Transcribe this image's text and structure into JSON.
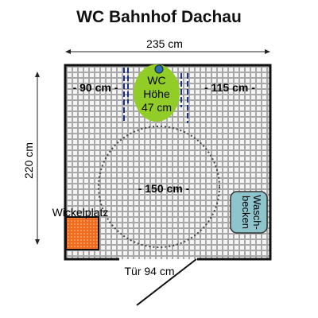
{
  "title": "WC Bahnhof Dachau",
  "width_label": "235 cm",
  "height_label": "220 cm",
  "left_gap_label": "- 90 cm -",
  "right_gap_label": "- 115 cm -",
  "wc": {
    "line1": "WC",
    "line2": "Höhe",
    "line3": "47 cm"
  },
  "circle_label": "- 150 cm -",
  "changing_table_label": "Wickelplatz",
  "sink": {
    "line1": "Wasch-",
    "line2": "becken"
  },
  "door_label": "Tür 94 cm",
  "colors": {
    "floor_tile": "#a8a8a8",
    "wc": "#92cc26",
    "wc_dot": "#2e6fb6",
    "changing_table": "#ee6c1f",
    "sink": "#8ec4cc",
    "rail": "#1b2f8c"
  }
}
